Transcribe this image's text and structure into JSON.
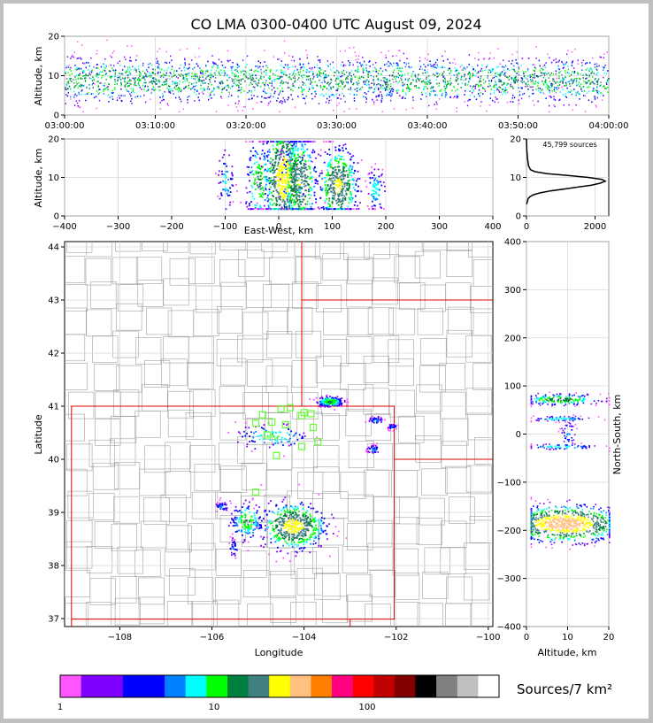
{
  "title": "CO LMA 0300-0400 UTC August 09, 2024",
  "colors": {
    "colorbar": [
      "#ff55ff",
      "#8000ff",
      "#8000ff",
      "#0000ff",
      "#0000ff",
      "#0080ff",
      "#00ffff",
      "#00ff00",
      "#008040",
      "#408080",
      "#ffff00",
      "#ffc080",
      "#ff8000",
      "#ff0080",
      "#ff0000",
      "#c00000",
      "#800000",
      "#000000",
      "#808080",
      "#c0c0c0",
      "#ffffff"
    ],
    "state_lines": "#dd0000",
    "county_lines": "#a0a0a0",
    "station_marker": "#66ff33"
  },
  "chart_data": [
    {
      "id": "time-height",
      "type": "heatmap",
      "ylabel": "Altitude, km",
      "ylim": [
        0,
        20
      ],
      "yticks": [
        "0",
        "10",
        "20"
      ],
      "xticks": [
        "03:00:00",
        "03:10:00",
        "03:20:00",
        "03:30:00",
        "03:40:00",
        "03:50:00",
        "04:00:00"
      ],
      "xlim_minutes": [
        0,
        60
      ]
    },
    {
      "id": "ew-altitude",
      "type": "heatmap",
      "xlabel": "East-West, km",
      "ylabel": "Altitude, km",
      "xlim": [
        -400,
        400
      ],
      "ylim": [
        0,
        20
      ],
      "xticks": [
        "−400",
        "−300",
        "−200",
        "−100",
        "0",
        "100",
        "200",
        "300",
        "400"
      ],
      "yticks": [
        "0",
        "10",
        "20"
      ],
      "clusters": [
        {
          "x": -100,
          "z": 9,
          "wx": 8,
          "wz": 4,
          "n": 60
        },
        {
          "x": -38,
          "z": 9,
          "wx": 12,
          "wz": 6,
          "n": 160
        },
        {
          "x": 8,
          "z": 10,
          "wx": 18,
          "wz": 7,
          "n": 600
        },
        {
          "x": 38,
          "z": 9,
          "wx": 16,
          "wz": 6,
          "n": 380
        },
        {
          "x": 110,
          "z": 8,
          "wx": 18,
          "wz": 5,
          "n": 420
        },
        {
          "x": 180,
          "z": 7,
          "wx": 8,
          "wz": 3,
          "n": 80
        }
      ]
    },
    {
      "id": "altitude-histogram",
      "type": "line",
      "annotation": "45,799 sources",
      "xlim": [
        0,
        2400
      ],
      "ylim": [
        0,
        20
      ],
      "xticks": [
        "0",
        "2000"
      ],
      "yticks": [
        "0",
        "10",
        "20"
      ],
      "x": [
        0,
        20,
        50,
        100,
        200,
        400,
        700,
        1100,
        1500,
        1900,
        2150,
        2300,
        2200,
        1800,
        1200,
        600,
        250,
        120,
        60,
        30,
        10,
        0
      ],
      "y": [
        3,
        3.5,
        4.5,
        5,
        5.5,
        6,
        6.5,
        7,
        7.5,
        8,
        8.5,
        9,
        9.5,
        10,
        10.5,
        11,
        11.5,
        12,
        13,
        15,
        17,
        20
      ]
    },
    {
      "id": "plan-view",
      "type": "scatter",
      "xlabel": "Longitude",
      "ylabel": "Latitude",
      "xlim": [
        -109.2,
        -99.9
      ],
      "ylim": [
        36.85,
        44.1
      ],
      "xticks": [
        "−108",
        "−106",
        "−104",
        "−102",
        "−100"
      ],
      "yticks": [
        "37",
        "38",
        "39",
        "40",
        "41",
        "42",
        "43",
        "44"
      ],
      "stations": [
        {
          "lon": -104.9,
          "lat": 40.84
        },
        {
          "lon": -104.5,
          "lat": 40.95
        },
        {
          "lon": -104.3,
          "lat": 40.97
        },
        {
          "lon": -104.0,
          "lat": 40.88
        },
        {
          "lon": -103.85,
          "lat": 40.86
        },
        {
          "lon": -105.05,
          "lat": 40.68
        },
        {
          "lon": -104.7,
          "lat": 40.7
        },
        {
          "lon": -104.4,
          "lat": 40.65
        },
        {
          "lon": -104.05,
          "lat": 40.82
        },
        {
          "lon": -103.8,
          "lat": 40.6
        },
        {
          "lon": -104.8,
          "lat": 40.46
        },
        {
          "lon": -103.7,
          "lat": 40.33
        },
        {
          "lon": -104.05,
          "lat": 40.24
        },
        {
          "lon": -104.6,
          "lat": 40.07
        },
        {
          "lon": -105.05,
          "lat": 39.38
        }
      ],
      "clusters": [
        {
          "lon": -104.25,
          "lat": 38.75,
          "wx": 0.35,
          "wy": 0.22,
          "n": 500
        },
        {
          "lon": -105.25,
          "lat": 38.85,
          "wx": 0.18,
          "wy": 0.18,
          "n": 150
        },
        {
          "lon": -103.45,
          "lat": 41.1,
          "wx": 0.15,
          "wy": 0.05,
          "n": 160
        },
        {
          "lon": -104.7,
          "lat": 40.45,
          "wx": 0.4,
          "wy": 0.12,
          "n": 100
        },
        {
          "lon": -102.45,
          "lat": 40.75,
          "wx": 0.08,
          "wy": 0.04,
          "n": 40
        },
        {
          "lon": -102.1,
          "lat": 40.63,
          "wx": 0.06,
          "wy": 0.03,
          "n": 30
        },
        {
          "lon": -102.5,
          "lat": 40.2,
          "wx": 0.08,
          "wy": 0.04,
          "n": 40
        },
        {
          "lon": -105.8,
          "lat": 39.12,
          "wx": 0.07,
          "wy": 0.05,
          "n": 40
        },
        {
          "lon": -105.55,
          "lat": 38.35,
          "wx": 0.05,
          "wy": 0.1,
          "n": 30
        }
      ]
    },
    {
      "id": "altitude-ns",
      "type": "heatmap",
      "xlabel": "Altitude, km",
      "ylabel": "North-South, km",
      "xlim": [
        0,
        20
      ],
      "ylim": [
        -400,
        400
      ],
      "xticks": [
        "0",
        "10",
        "20"
      ],
      "yticks": [
        "−400",
        "−300",
        "−200",
        "−100",
        "0",
        "100",
        "200",
        "300",
        "400"
      ],
      "clusters": [
        {
          "z": 8,
          "y": 73,
          "wz": 5,
          "wy": 6,
          "n": 200
        },
        {
          "z": 8,
          "y": 33,
          "wz": 4,
          "wy": 3,
          "n": 80
        },
        {
          "z": 10,
          "y": 0,
          "wz": 1,
          "wy": 15,
          "n": 40
        },
        {
          "z": 8,
          "y": -25,
          "wz": 5,
          "wy": 3,
          "n": 80
        },
        {
          "z": 9,
          "y": -185,
          "wz": 7,
          "wy": 18,
          "n": 900
        }
      ]
    }
  ],
  "colorbar": {
    "label": "Sources/7 km²",
    "ticks": [
      "1",
      "10",
      "100"
    ]
  }
}
